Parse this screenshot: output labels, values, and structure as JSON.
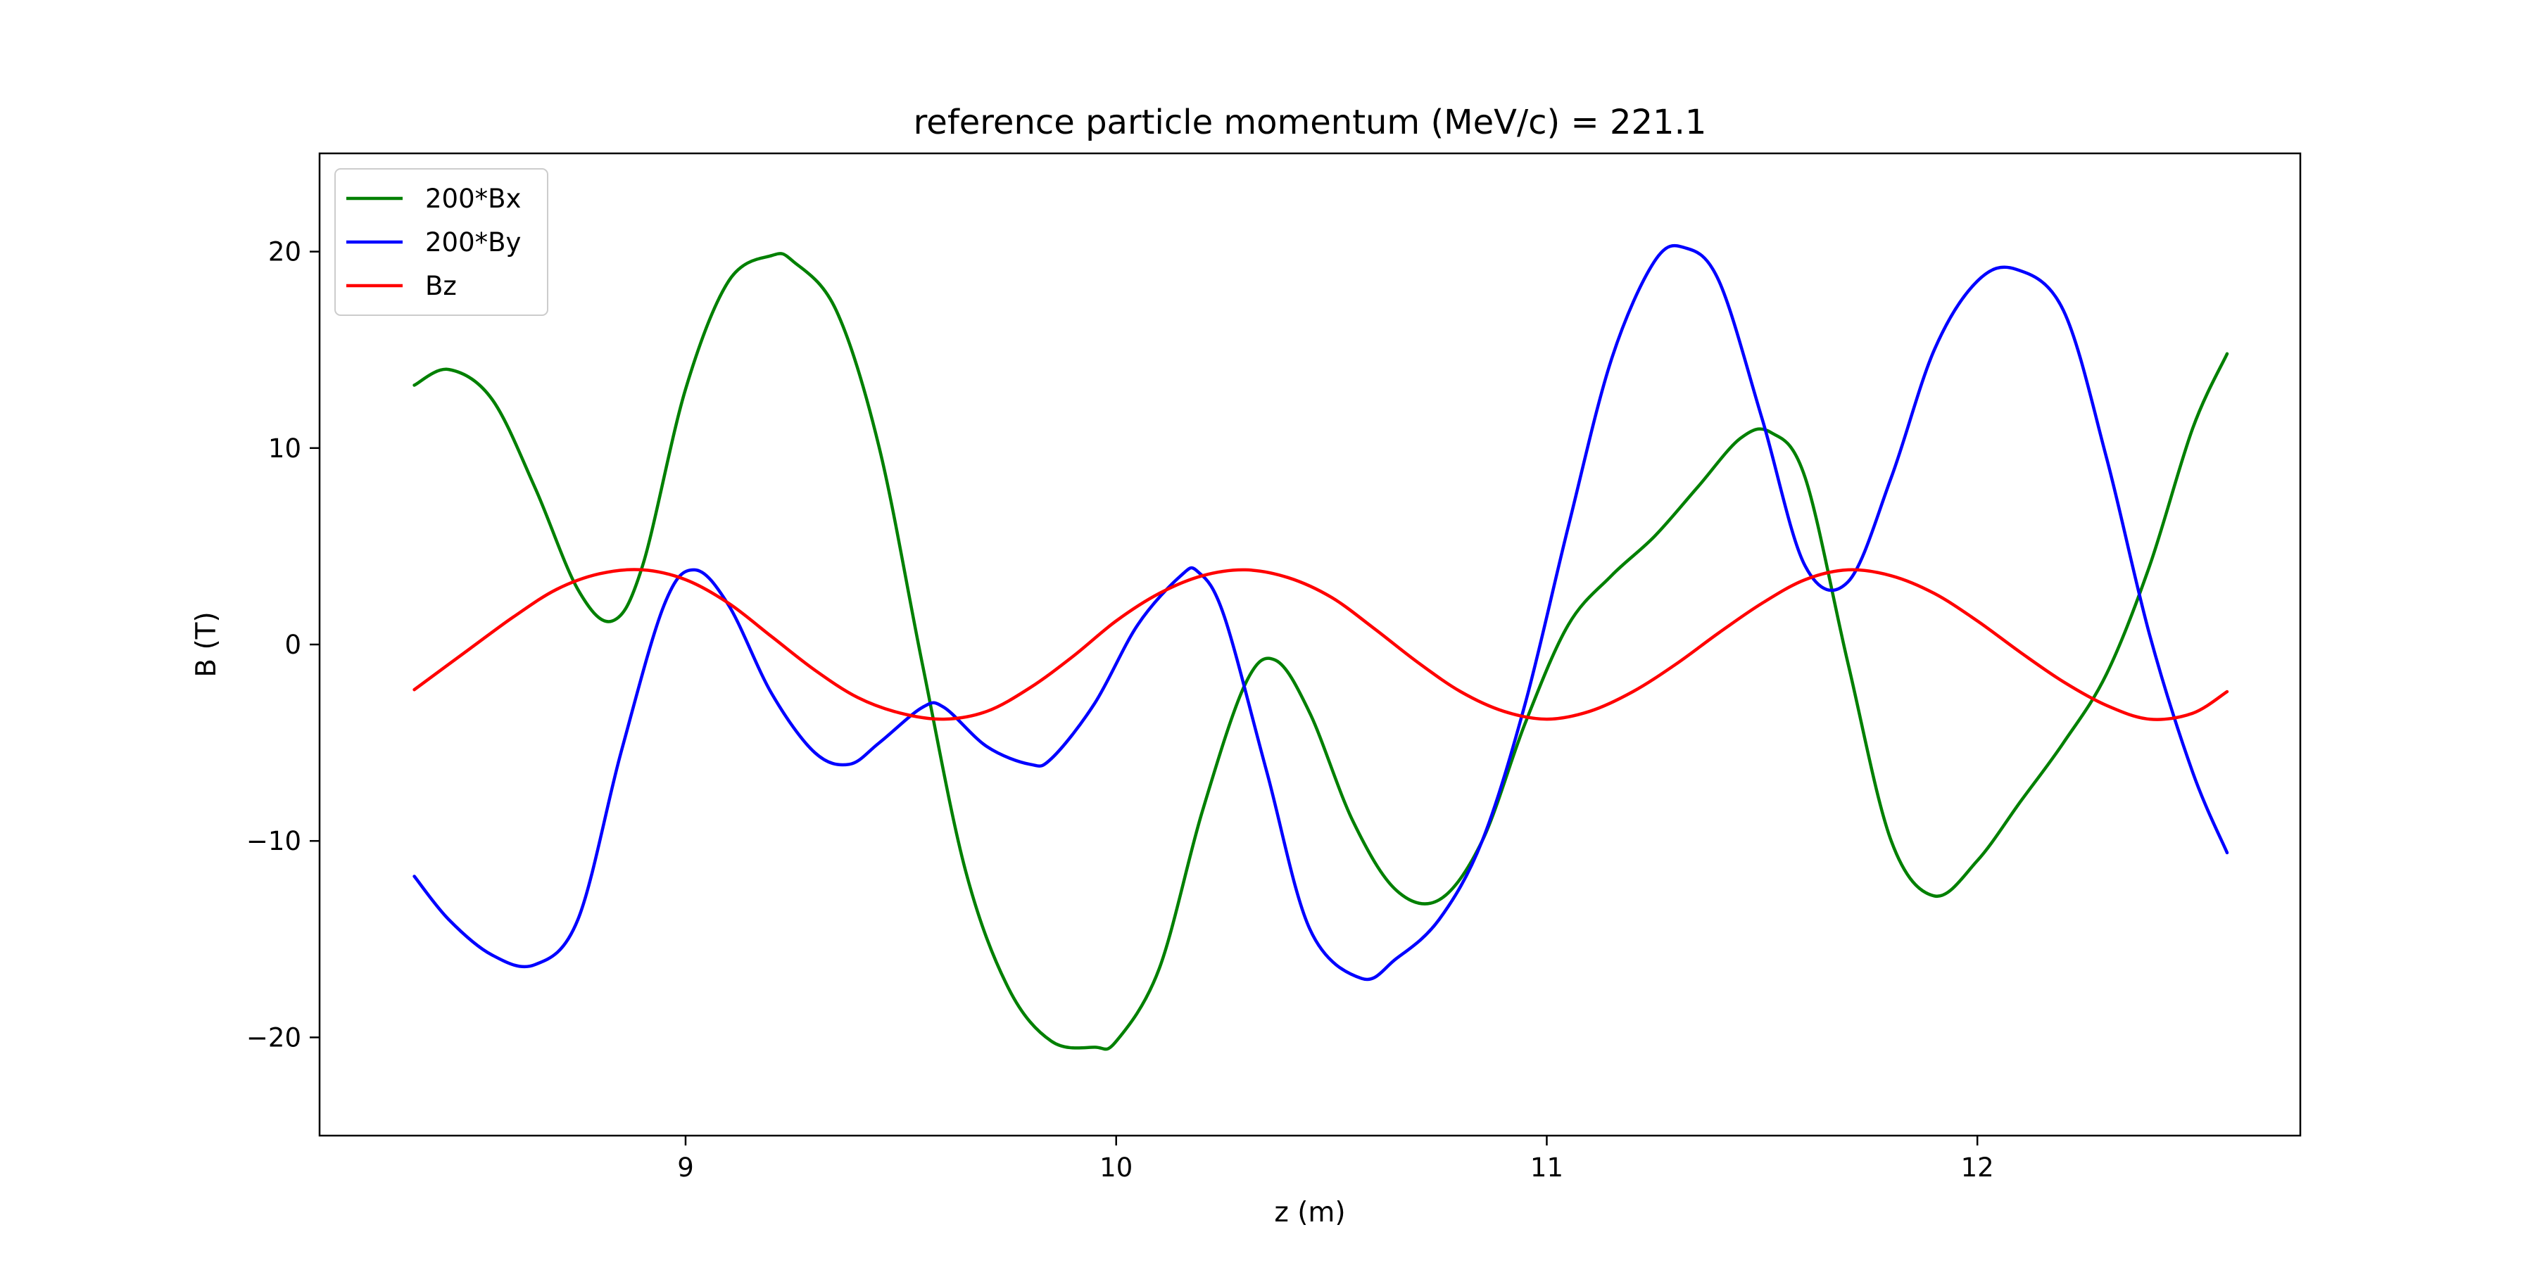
{
  "chart_data": {
    "type": "line",
    "title": "reference particle momentum (MeV/c) = 221.1",
    "xlabel": "z (m)",
    "ylabel": "B (T)",
    "xlim": [
      8.15,
      12.75
    ],
    "ylim": [
      -25,
      25
    ],
    "xticks": [
      9,
      10,
      11,
      12
    ],
    "yticks": [
      -20,
      -10,
      0,
      10,
      20
    ],
    "xtick_labels": [
      "9",
      "10",
      "11",
      "12"
    ],
    "ytick_labels": [
      "−20",
      "−10",
      "0",
      "10",
      "20"
    ],
    "grid": false,
    "legend_position": "top-left",
    "series": [
      {
        "name": "200*Bx",
        "color": "#008000",
        "x": [
          8.37,
          8.45,
          8.55,
          8.65,
          8.75,
          8.83,
          8.9,
          9.0,
          9.1,
          9.2,
          9.25,
          9.35,
          9.45,
          9.55,
          9.65,
          9.75,
          9.85,
          9.95,
          10.0,
          10.1,
          10.2,
          10.3,
          10.37,
          10.45,
          10.55,
          10.65,
          10.75,
          10.85,
          10.95,
          11.05,
          11.15,
          11.25,
          11.35,
          11.45,
          11.52,
          11.6,
          11.7,
          11.8,
          11.9,
          12.0,
          12.1,
          12.2,
          12.3,
          12.4,
          12.5,
          12.58
        ],
        "y": [
          13.2,
          14.0,
          12.5,
          8.0,
          2.8,
          1.2,
          4.0,
          13.0,
          18.5,
          19.8,
          19.5,
          17.0,
          10.0,
          -1.0,
          -11.5,
          -17.5,
          -20.2,
          -20.5,
          -20.2,
          -16.5,
          -8.5,
          -2.0,
          -0.8,
          -3.5,
          -9.0,
          -12.5,
          -13.0,
          -10.0,
          -4.0,
          1.0,
          3.5,
          5.5,
          8.0,
          10.5,
          10.8,
          8.5,
          -1.0,
          -10.0,
          -12.8,
          -11.0,
          -8.0,
          -5.0,
          -1.5,
          4.0,
          11.0,
          14.8
        ]
      },
      {
        "name": "200*By",
        "color": "#0000ff",
        "x": [
          8.37,
          8.45,
          8.55,
          8.65,
          8.75,
          8.85,
          8.95,
          9.02,
          9.1,
          9.2,
          9.3,
          9.38,
          9.45,
          9.55,
          9.6,
          9.7,
          9.8,
          9.85,
          9.95,
          10.05,
          10.15,
          10.19,
          10.25,
          10.35,
          10.45,
          10.57,
          10.65,
          10.75,
          10.85,
          10.95,
          11.05,
          11.15,
          11.25,
          11.32,
          11.4,
          11.5,
          11.6,
          11.7,
          11.8,
          11.9,
          12.0,
          12.09,
          12.2,
          12.3,
          12.4,
          12.5,
          12.58
        ],
        "y": [
          -11.8,
          -14.0,
          -15.8,
          -16.3,
          -14.0,
          -5.5,
          2.0,
          3.8,
          2.0,
          -2.5,
          -5.5,
          -6.1,
          -5.0,
          -3.2,
          -3.2,
          -5.2,
          -6.1,
          -5.8,
          -3.0,
          1.0,
          3.5,
          3.7,
          1.5,
          -6.5,
          -14.5,
          -17.0,
          -16.0,
          -14.0,
          -10.0,
          -3.0,
          6.0,
          14.5,
          19.5,
          20.2,
          18.5,
          11.5,
          4.0,
          3.2,
          8.5,
          15.0,
          18.5,
          19.1,
          17.0,
          9.5,
          0.5,
          -6.5,
          -10.6
        ]
      },
      {
        "name": "Bz",
        "color": "#ff0000",
        "x": [
          8.37,
          8.5,
          8.6,
          8.7,
          8.8,
          8.9,
          9.0,
          9.1,
          9.2,
          9.3,
          9.4,
          9.5,
          9.6,
          9.7,
          9.8,
          9.9,
          10.0,
          10.1,
          10.2,
          10.3,
          10.4,
          10.5,
          10.6,
          10.7,
          10.8,
          10.9,
          11.0,
          11.1,
          11.2,
          11.3,
          11.4,
          11.5,
          11.6,
          11.7,
          11.8,
          11.9,
          12.0,
          12.1,
          12.2,
          12.3,
          12.4,
          12.5,
          12.58
        ],
        "y": [
          -2.3,
          -0.2,
          1.4,
          2.8,
          3.6,
          3.8,
          3.3,
          2.1,
          0.4,
          -1.3,
          -2.7,
          -3.5,
          -3.8,
          -3.4,
          -2.2,
          -0.6,
          1.2,
          2.6,
          3.5,
          3.8,
          3.4,
          2.4,
          0.8,
          -0.9,
          -2.4,
          -3.4,
          -3.8,
          -3.4,
          -2.4,
          -1.0,
          0.6,
          2.1,
          3.3,
          3.8,
          3.5,
          2.6,
          1.2,
          -0.4,
          -1.9,
          -3.1,
          -3.8,
          -3.5,
          -2.4
        ]
      }
    ]
  }
}
